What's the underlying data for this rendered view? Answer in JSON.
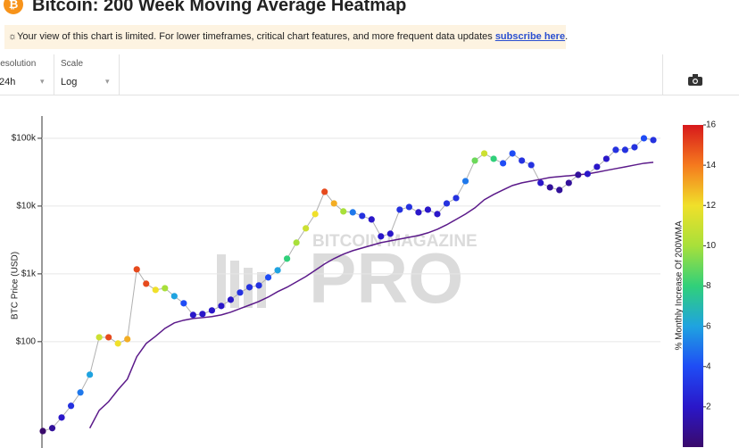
{
  "header": {
    "title": "Bitcoin: 200 Week Moving Average Heatmap"
  },
  "notice": {
    "text": "☼Your view of this chart is limited. For lower timeframes, critical chart features, and more frequent data updates",
    "link": "subscribe here",
    "end": "."
  },
  "controls": [
    {
      "label": "Resolution",
      "value": "24h"
    },
    {
      "label": "Scale",
      "value": "Log"
    }
  ],
  "watermark": {
    "top": "BITCOIN MAGAZINE",
    "bottom": "PRO"
  },
  "chart_data": {
    "type": "scatter",
    "y_label": "BTC Price (USD)",
    "colorbar_label": "% Monthly Increase Of 200WMA",
    "categories": [
      null,
      null,
      null,
      null,
      null,
      null,
      null,
      null,
      null,
      null,
      null,
      null,
      null,
      null,
      null,
      null,
      null,
      null,
      null,
      null,
      null,
      null,
      null,
      null,
      null,
      null,
      null,
      null,
      null,
      null,
      null,
      null,
      null,
      null,
      null,
      null,
      null,
      null,
      null,
      null,
      null,
      null,
      null,
      null,
      null,
      null,
      null,
      null,
      null,
      null,
      null,
      null,
      null,
      null,
      null,
      null,
      null,
      null,
      null,
      null,
      null,
      null,
      null,
      null,
      null,
      null
    ],
    "values": [
      4.8,
      5.3,
      7.6,
      11.3,
      17.8,
      32.6,
      116,
      116,
      94,
      109,
      1165,
      716,
      580,
      615,
      469,
      368,
      248,
      256,
      289,
      336,
      415,
      530,
      635,
      675,
      886,
      1130,
      1675,
      2890,
      4690,
      7620,
      16250,
      10940,
      8340,
      8090,
      7160,
      6350,
      3570,
      3910,
      8850,
      9700,
      8090,
      8850,
      7620,
      10940,
      13130,
      23350,
      46900,
      59700,
      49800,
      42800,
      59700,
      46900,
      40300,
      21980,
      18880,
      17260,
      21980,
      28900,
      29800,
      37900,
      49800,
      67500,
      67500,
      73800,
      100000,
      94200
    ],
    "color_values": [
      0,
      1,
      2,
      3,
      5,
      6,
      11,
      15,
      12,
      13,
      15,
      15,
      12,
      10,
      6,
      4,
      2,
      2,
      2,
      2,
      2,
      3,
      3,
      3,
      4,
      6,
      8,
      10,
      11,
      12,
      15,
      13,
      10,
      5,
      3,
      2,
      2,
      2,
      3,
      3,
      2,
      2,
      2,
      3,
      3,
      5,
      9,
      11,
      8,
      4,
      4,
      3,
      3,
      2,
      1,
      1,
      1,
      1,
      2,
      2,
      2,
      3,
      3,
      3,
      4,
      3
    ],
    "wma_values": [
      null,
      null,
      null,
      null,
      null,
      5.3,
      9.7,
      13,
      19.5,
      28,
      60,
      94,
      120,
      157,
      189,
      207,
      220,
      226,
      234,
      248,
      272,
      307,
      346,
      391,
      455,
      546,
      635,
      762,
      914,
      1130,
      1400,
      1680,
      1950,
      2200,
      2410,
      2640,
      2890,
      3070,
      3260,
      3460,
      3680,
      4030,
      4550,
      5300,
      6350,
      7620,
      9420,
      12400,
      14800,
      17300,
      20100,
      22000,
      23400,
      24800,
      26400,
      27200,
      28000,
      28900,
      29800,
      31600,
      33600,
      35700,
      37900,
      40300,
      42800,
      44200
    ],
    "wma_color": "#5b1a8a",
    "line_color": "#b0b0b0",
    "log_y": true,
    "grid": true,
    "ylim": [
      2.7,
      213000
    ],
    "yticks": [
      {
        "value": 100,
        "label": "$100"
      },
      {
        "value": 1000,
        "label": "$1k"
      },
      {
        "value": 10000,
        "label": "$10k"
      },
      {
        "value": 100000,
        "label": "$100k"
      }
    ],
    "zlim": [
      0,
      16
    ],
    "zticks": [
      2,
      4,
      6,
      8,
      10,
      12,
      14,
      16
    ],
    "colorscale": [
      "#3a0a6b",
      "#2a17c9",
      "#1f4cf5",
      "#1fa3e0",
      "#30d07a",
      "#a8e03a",
      "#f0e02a",
      "#f57a1e",
      "#d7191c"
    ]
  }
}
